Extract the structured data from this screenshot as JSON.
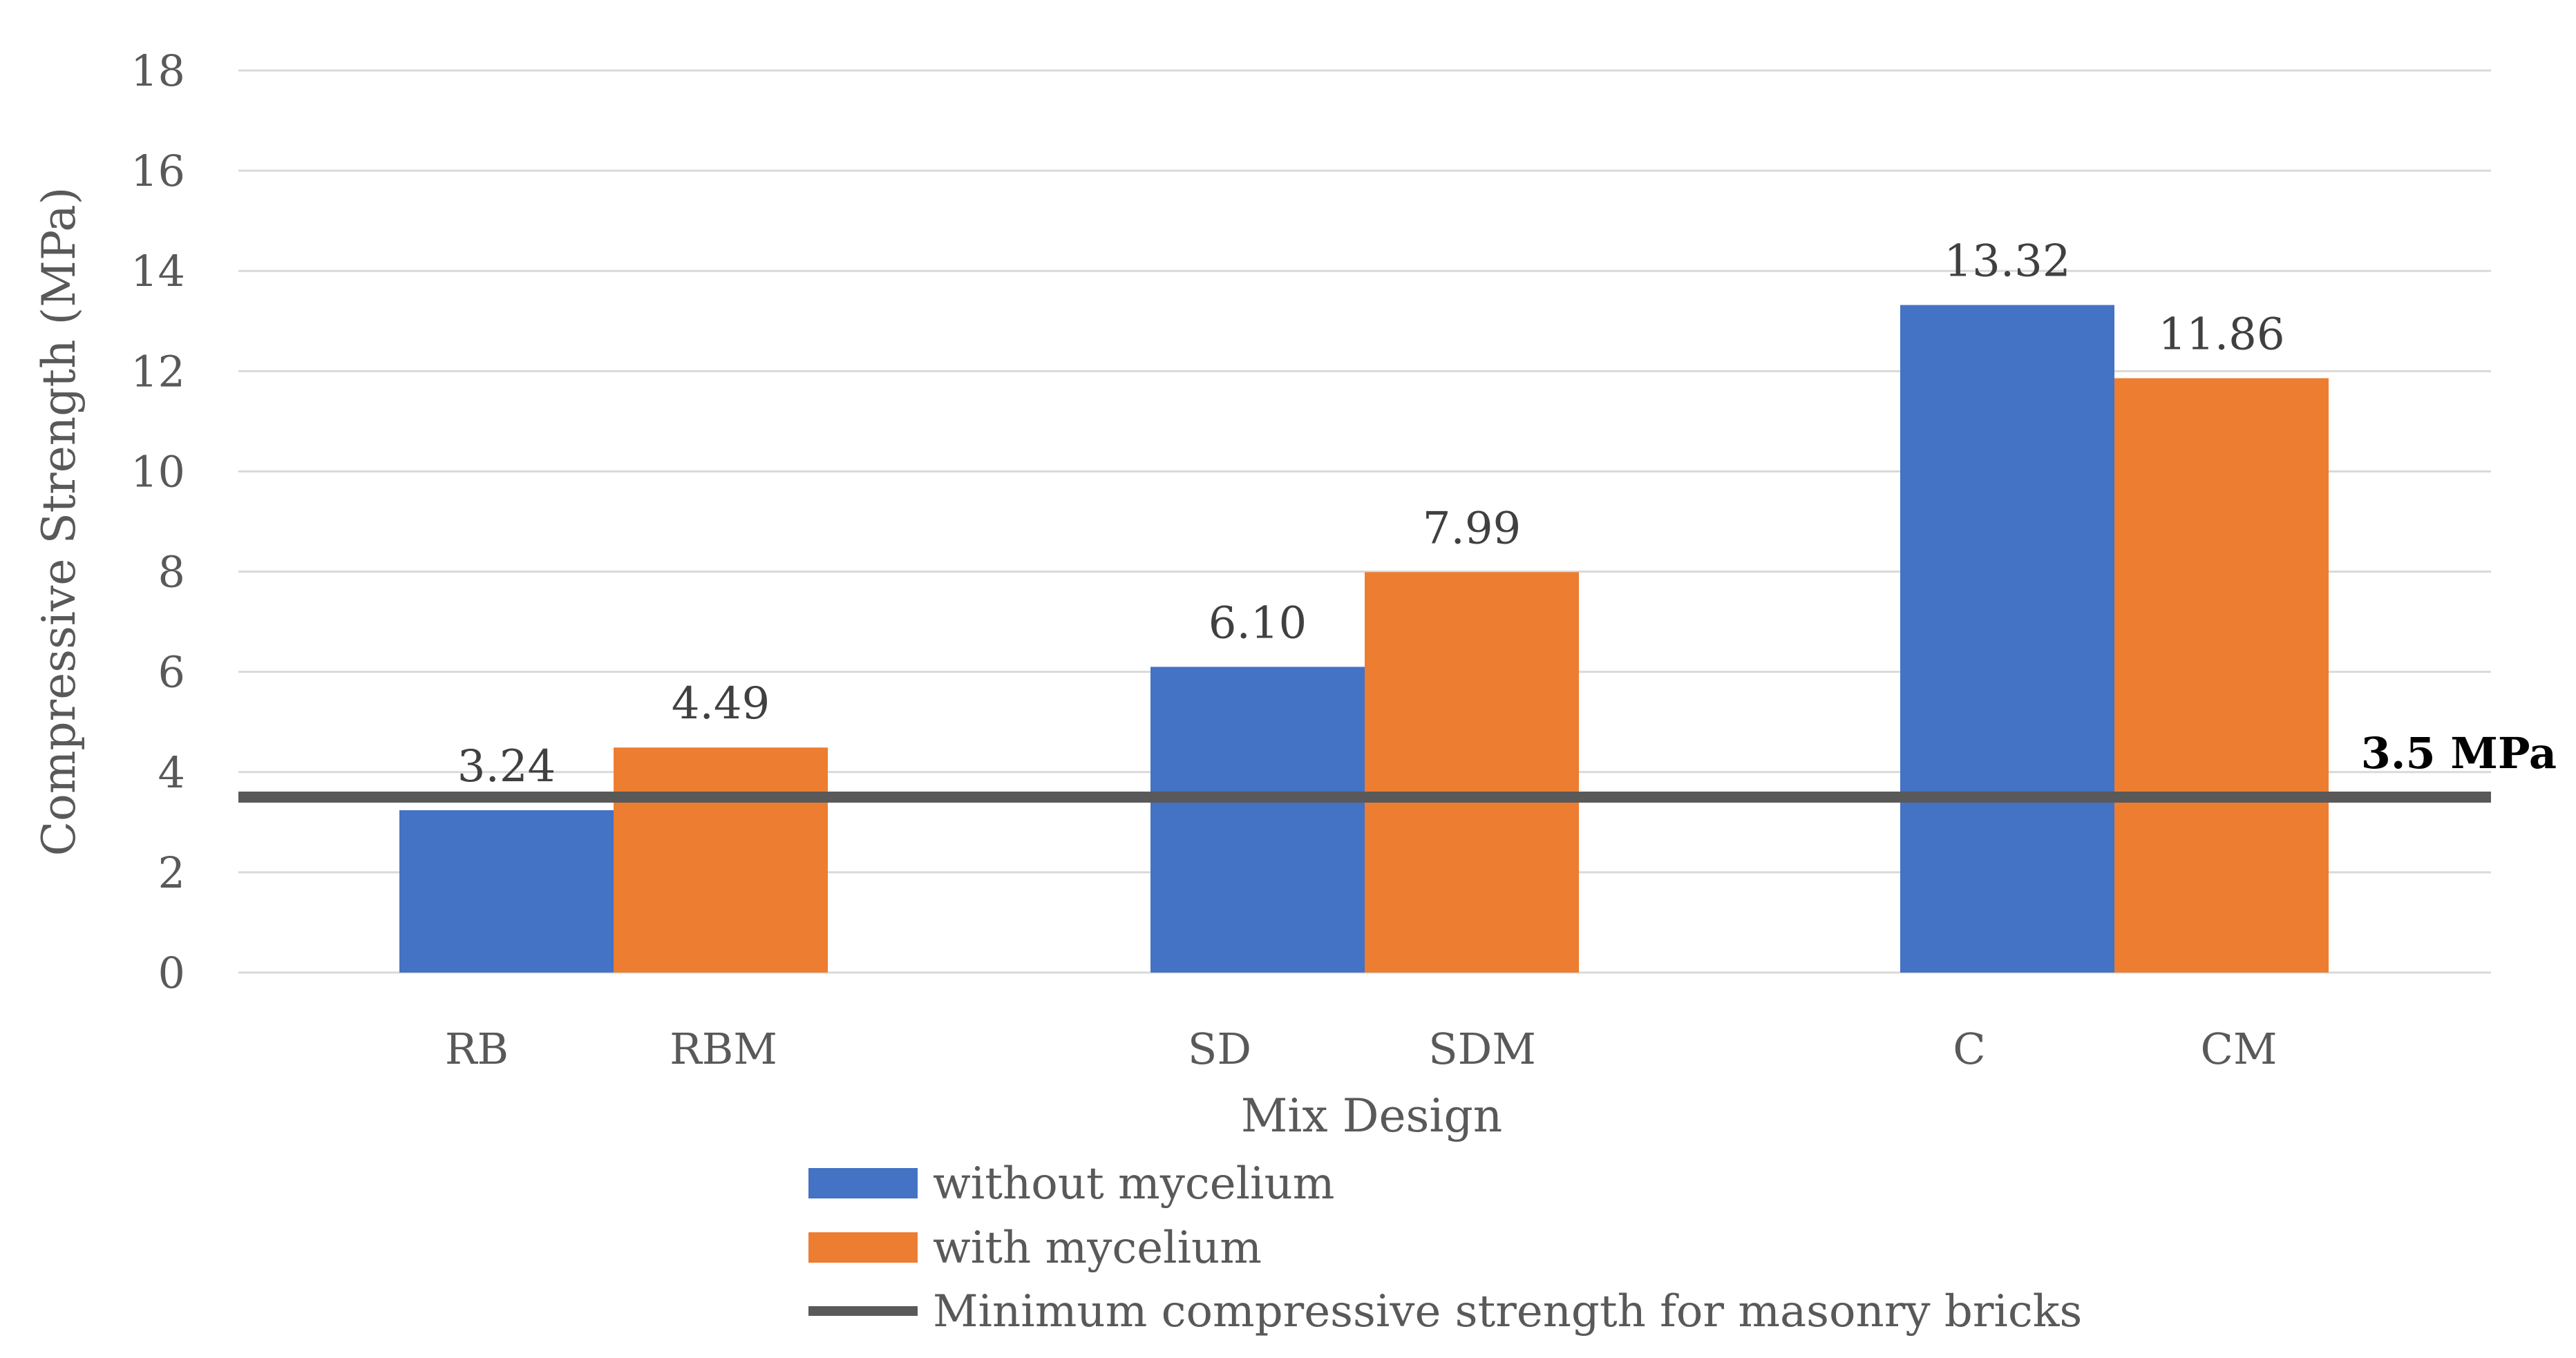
{
  "chart_data": {
    "type": "bar",
    "xlabel": "Mix Design",
    "ylabel": "Compressive Strength (MPa)",
    "ylim": [
      0,
      18
    ],
    "yticks": [
      "0",
      "2",
      "4",
      "6",
      "8",
      "10",
      "12",
      "14",
      "16",
      "18"
    ],
    "grid": true,
    "groups": [
      {
        "bars": [
          {
            "category": "RB",
            "series": 0,
            "value": 3.24,
            "label": "3.24"
          },
          {
            "category": "RBM",
            "series": 1,
            "value": 4.49,
            "label": "4.49"
          }
        ]
      },
      {
        "bars": [
          {
            "category": "SD",
            "series": 0,
            "value": 6.1,
            "label": "6.10"
          },
          {
            "category": "SDM",
            "series": 1,
            "value": 7.99,
            "label": "7.99"
          }
        ]
      },
      {
        "bars": [
          {
            "category": "C",
            "series": 0,
            "value": 13.32,
            "label": "13.32"
          },
          {
            "category": "CM",
            "series": 1,
            "value": 11.86,
            "label": "11.86"
          }
        ]
      }
    ],
    "series": [
      {
        "name": "without mycelium",
        "color": "#4472C4"
      },
      {
        "name": "with mycelium",
        "color": "#ED7D31"
      }
    ],
    "threshold": {
      "value": 3.5,
      "label": "3.5 MPa",
      "name": "Minimum compressive strength for masonry bricks",
      "color": "#595959"
    },
    "legend_position": "bottom-center"
  }
}
